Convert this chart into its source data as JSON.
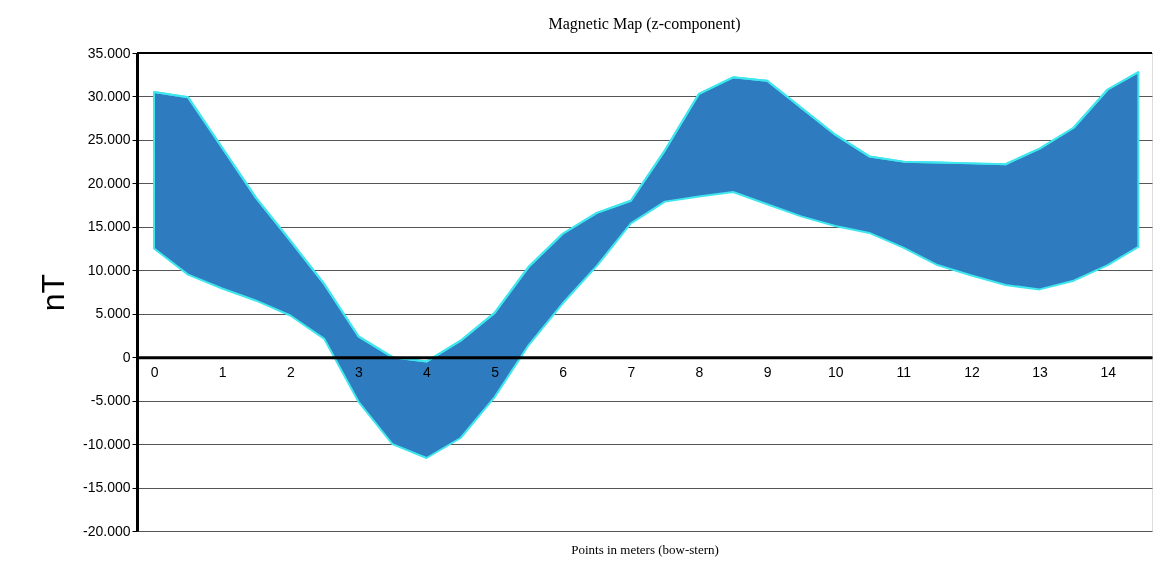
{
  "chart_data": {
    "type": "line",
    "title": "Magnetic Map (z-component)",
    "xlabel": "Points in meters (bow-stern)",
    "ylabel": "nT",
    "x": [
      0,
      0.5,
      1,
      1.5,
      2,
      2.5,
      3,
      3.5,
      4,
      4.5,
      5,
      5.5,
      6,
      6.5,
      7,
      7.5,
      8,
      8.5,
      9,
      9.5,
      10,
      10.5,
      11,
      11.5,
      12,
      12.5,
      13,
      13.5,
      14,
      14.45
    ],
    "series": [
      {
        "color": "#3fe6ee",
        "upper": [
          30500,
          29900,
          24100,
          18300,
          13400,
          8400,
          2400,
          0,
          -500,
          1900,
          5100,
          10400,
          14200,
          16600,
          18000,
          23800,
          30300,
          32200,
          31800,
          28700,
          25600,
          23100,
          22500,
          22400,
          22300,
          22200,
          24000,
          26400,
          30800,
          32800
        ],
        "values": [
          30500,
          29900,
          24100,
          18300,
          13400,
          8400,
          2400,
          0,
          -500,
          1900,
          5100,
          10400,
          14200,
          16600,
          18000,
          23800,
          30300,
          32200,
          31800,
          28700,
          25600,
          23100,
          22500,
          22400,
          22300,
          22200,
          24000,
          26400,
          30800,
          32800
        ],
        "lower": [
          12500,
          9500,
          7900,
          6500,
          4800,
          2100,
          -5100,
          -10000,
          -11600,
          -9300,
          -4600,
          1400,
          6200,
          10500,
          15400,
          17900,
          18500,
          19000,
          17600,
          16200,
          15100,
          14300,
          12600,
          10600,
          9400,
          8300,
          7800,
          8800,
          10600,
          12700
        ]
      }
    ],
    "xlim": [
      -0.25,
      14.65
    ],
    "xticks": [
      0,
      1,
      2,
      3,
      4,
      5,
      6,
      7,
      8,
      9,
      10,
      11,
      12,
      13,
      14
    ],
    "ylim": [
      -20000,
      35000
    ],
    "yticks": [
      {
        "value": 35000,
        "label": "35.000"
      },
      {
        "value": 30000,
        "label": "30.000"
      },
      {
        "value": 25000,
        "label": "25.000"
      },
      {
        "value": 20000,
        "label": "20.000"
      },
      {
        "value": 15000,
        "label": "15.000"
      },
      {
        "value": 10000,
        "label": "10.000"
      },
      {
        "value": 5000,
        "label": "5.000"
      },
      0,
      {
        "value": -5000,
        "label": "-5.000"
      },
      {
        "value": -10000,
        "label": "-10.000"
      },
      {
        "value": -15000,
        "label": "-15.000"
      },
      {
        "value": -20000,
        "label": "-20.000"
      }
    ],
    "grid": "y"
  }
}
